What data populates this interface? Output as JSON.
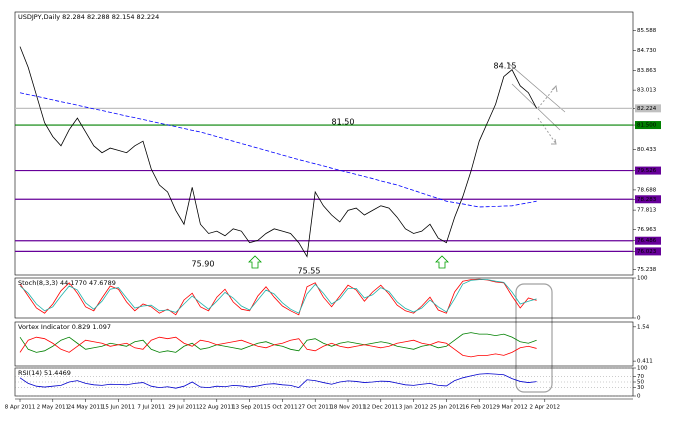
{
  "chart_data": [
    {
      "type": "line",
      "title": "USDJPY,Daily  82.284 82.288 82.154 82.224",
      "categories": [
        "8 Apr 2011",
        null,
        null,
        null,
        "2 May 2011",
        null,
        null,
        null,
        "24 May 2011",
        null,
        null,
        null,
        "15 Jun 2011",
        null,
        null,
        null,
        "7 Jul 2011",
        null,
        null,
        null,
        "29 Jul 2011",
        null,
        null,
        null,
        "22 Aug 2011",
        null,
        null,
        null,
        "13 Sep 2011",
        null,
        null,
        null,
        "5 Oct 2011",
        null,
        null,
        null,
        "27 Oct 2011",
        null,
        null,
        null,
        "18 Nov 2011",
        null,
        null,
        null,
        "12 Dec 2011",
        null,
        null,
        null,
        "3 Jan 2012",
        null,
        null,
        null,
        "25 Jan 2012",
        null,
        null,
        null,
        "16 Feb 2012",
        null,
        null,
        null,
        "9 Mar 2012",
        null,
        null,
        null,
        "2 Apr 2012"
      ],
      "series": [
        {
          "color": "#000000",
          "values": [
            84.9,
            84.0,
            82.8,
            81.6,
            81.0,
            80.6,
            81.3,
            81.8,
            81.2,
            80.6,
            80.3,
            80.5,
            80.4,
            80.3,
            80.6,
            80.8,
            79.6,
            78.9,
            78.6,
            77.8,
            77.2,
            78.8,
            77.2,
            76.8,
            76.9,
            76.7,
            77.0,
            76.9,
            76.4,
            76.5,
            76.8,
            77.0,
            76.9,
            76.8,
            76.4,
            75.8,
            78.6,
            78.0,
            77.6,
            77.3,
            77.8,
            77.9,
            77.6,
            77.8,
            78.0,
            77.9,
            77.5,
            77.0,
            76.8,
            76.9,
            77.2,
            76.6,
            76.4,
            77.5,
            78.4,
            79.5,
            80.8,
            81.6,
            82.4,
            83.6,
            83.9,
            83.2,
            82.9,
            82.224,
            null
          ]
        },
        {
          "color": "#0000ff",
          "dash": true,
          "values": [
            82.9,
            82.82,
            82.75,
            82.67,
            82.59,
            82.51,
            82.44,
            82.36,
            82.28,
            82.2,
            82.13,
            82.05,
            81.97,
            81.89,
            81.82,
            81.74,
            81.66,
            81.58,
            81.51,
            81.43,
            81.35,
            81.27,
            81.2,
            81.1,
            81.0,
            80.9,
            80.8,
            80.7,
            80.6,
            80.5,
            80.4,
            80.3,
            80.2,
            80.1,
            80.0,
            79.91,
            79.82,
            79.73,
            79.63,
            79.54,
            79.45,
            79.36,
            79.27,
            79.18,
            79.08,
            78.99,
            78.9,
            78.78,
            78.67,
            78.55,
            78.43,
            78.32,
            78.2,
            78.14,
            78.08,
            78.01,
            77.95,
            77.96,
            77.97,
            77.99,
            78.0,
            78.07,
            78.13,
            78.2,
            null
          ]
        }
      ],
      "ylim": [
        75.0,
        86.4
      ],
      "yticks": [
        85.588,
        {
          "value": 84.73,
          "label": "84.730"
        },
        83.863,
        83.013,
        82.224,
        {
          "value": 81.5,
          "label": "81.500"
        },
        80.433,
        79.526,
        78.688,
        78.283,
        77.813,
        76.963,
        76.486,
        76.023,
        75.238
      ],
      "levels": [
        {
          "value": 82.224,
          "color": "#c0c0c0"
        },
        {
          "value": 81.5,
          "color": "#008000"
        },
        {
          "value": 79.526,
          "color": "#660099"
        },
        {
          "value": 78.283,
          "color": "#660099"
        },
        {
          "value": 76.486,
          "color": "#660099"
        },
        {
          "value": 76.023,
          "color": "#660099"
        }
      ],
      "annotations": [
        {
          "text": "84.15",
          "color": "#808080"
        },
        {
          "text": "81.50",
          "color": "#008000"
        },
        {
          "text": "75.90",
          "color": "#008000"
        },
        {
          "text": "75.55",
          "color": "#008000"
        }
      ]
    },
    {
      "type": "line",
      "title": "Stoch(8,3,3) 44.1770 47.6789",
      "series": [
        {
          "color": "#ff0000",
          "values": [
            85,
            55,
            25,
            12,
            35,
            68,
            88,
            62,
            28,
            18,
            50,
            80,
            72,
            40,
            18,
            35,
            28,
            12,
            22,
            8,
            45,
            62,
            28,
            18,
            52,
            72,
            40,
            22,
            18,
            55,
            78,
            52,
            30,
            18,
            8,
            78,
            88,
            52,
            28,
            55,
            82,
            70,
            42,
            65,
            82,
            60,
            32,
            18,
            12,
            30,
            52,
            20,
            12,
            65,
            92,
            96,
            97,
            95,
            90,
            88,
            55,
            25,
            50,
            44.177,
            null
          ]
        },
        {
          "color": "#20b2aa",
          "values": [
            80,
            62,
            35,
            18,
            28,
            55,
            80,
            70,
            38,
            22,
            42,
            72,
            76,
            50,
            25,
            30,
            32,
            18,
            20,
            14,
            35,
            55,
            38,
            22,
            42,
            64,
            50,
            30,
            20,
            45,
            70,
            60,
            38,
            22,
            12,
            60,
            84,
            62,
            35,
            48,
            74,
            74,
            50,
            58,
            76,
            66,
            40,
            24,
            15,
            25,
            45,
            28,
            15,
            48,
            85,
            94,
            96,
            96,
            92,
            89,
            65,
            35,
            42,
            47.6789,
            null
          ]
        }
      ],
      "ylim": [
        0,
        100
      ],
      "yticks": [
        0,
        100
      ]
    },
    {
      "type": "line",
      "title": "Vortex Indicator 0.829 1.097",
      "series": [
        {
          "color": "#008000",
          "values": [
            1.2,
            0.8,
            0.7,
            0.75,
            0.9,
            1.1,
            1.2,
            1.0,
            0.8,
            0.85,
            0.9,
            1.0,
            0.95,
            0.9,
            1.05,
            1.1,
            0.8,
            0.7,
            0.75,
            0.7,
            0.9,
            1.0,
            0.8,
            0.85,
            0.95,
            0.9,
            0.85,
            0.8,
            0.9,
            1.0,
            1.05,
            0.95,
            0.9,
            0.8,
            0.75,
            1.1,
            1.15,
            1.0,
            0.9,
            1.0,
            1.05,
            1.0,
            0.95,
            1.0,
            1.05,
            1.0,
            0.9,
            0.85,
            0.8,
            0.9,
            0.95,
            0.85,
            0.9,
            1.1,
            1.3,
            1.35,
            1.3,
            1.3,
            1.25,
            1.3,
            1.2,
            1.05,
            1.0,
            1.097,
            null
          ]
        },
        {
          "color": "#ff0000",
          "values": [
            0.7,
            1.1,
            1.2,
            1.15,
            1.0,
            0.8,
            0.7,
            0.9,
            1.1,
            1.05,
            1.0,
            0.9,
            0.95,
            1.0,
            0.85,
            0.8,
            1.1,
            1.2,
            1.15,
            1.2,
            1.0,
            0.9,
            1.1,
            1.05,
            0.95,
            1.0,
            1.05,
            1.1,
            1.0,
            0.9,
            0.85,
            0.95,
            1.0,
            1.1,
            1.15,
            0.8,
            0.75,
            0.9,
            1.0,
            0.9,
            0.85,
            0.9,
            0.95,
            0.9,
            0.85,
            0.9,
            1.0,
            1.05,
            1.1,
            1.0,
            0.95,
            1.05,
            1.0,
            0.8,
            0.6,
            0.55,
            0.6,
            0.6,
            0.65,
            0.6,
            0.7,
            0.85,
            0.9,
            0.829,
            null
          ]
        }
      ],
      "ylim": [
        0.25,
        1.7
      ],
      "yticks": [
        0.411,
        1.54
      ]
    },
    {
      "type": "line",
      "title": "RSI(14) 51.4469",
      "series": [
        {
          "color": "#0000cd",
          "values": [
            65,
            45,
            35,
            32,
            35,
            38,
            50,
            55,
            45,
            40,
            38,
            42,
            41,
            40,
            45,
            48,
            35,
            30,
            33,
            28,
            35,
            50,
            32,
            30,
            35,
            33,
            38,
            36,
            32,
            36,
            42,
            44,
            40,
            38,
            30,
            58,
            55,
            48,
            42,
            50,
            54,
            52,
            48,
            50,
            53,
            52,
            46,
            40,
            38,
            42,
            45,
            38,
            36,
            55,
            65,
            72,
            78,
            80,
            78,
            76,
            62,
            52,
            48,
            51.4469,
            null
          ]
        }
      ],
      "ylim": [
        0,
        100
      ],
      "yticks": [
        0,
        30,
        50,
        70,
        100
      ],
      "grid": true
    }
  ]
}
